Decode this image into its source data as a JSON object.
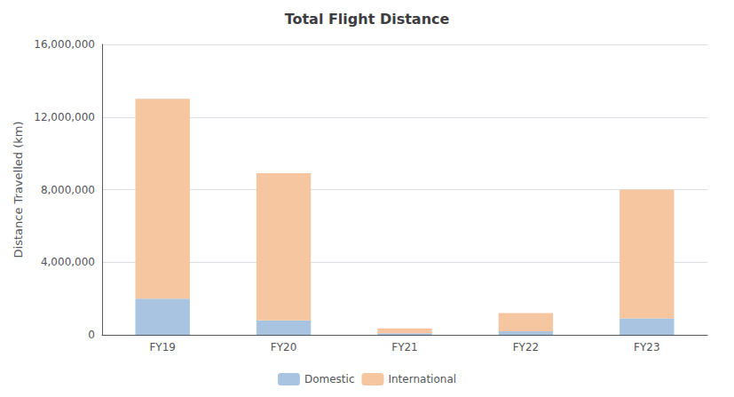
{
  "chart_data": {
    "type": "bar",
    "title": "Total Flight Distance",
    "ylabel": "Distance Travelled (km)",
    "categories": [
      "FY19",
      "FY20",
      "FY21",
      "FY22",
      "FY23"
    ],
    "series": [
      {
        "name": "Domestic",
        "color": "#a8c4e0",
        "values": [
          2000000,
          800000,
          80000,
          200000,
          900000
        ]
      },
      {
        "name": "International",
        "color": "#f5c6a0",
        "values": [
          11000000,
          8100000,
          280000,
          1000000,
          7100000
        ]
      }
    ],
    "stacked": true,
    "ylim": [
      0,
      16000000
    ],
    "yticks": [
      0,
      {
        "value": 4000000,
        "label": "4,000,000"
      },
      {
        "value": 8000000,
        "label": "8,000,000"
      },
      {
        "value": 12000000,
        "label": "12,000,000"
      },
      {
        "value": 16000000,
        "label": "16,000,000"
      }
    ],
    "grid": true,
    "legend": "bottom"
  }
}
